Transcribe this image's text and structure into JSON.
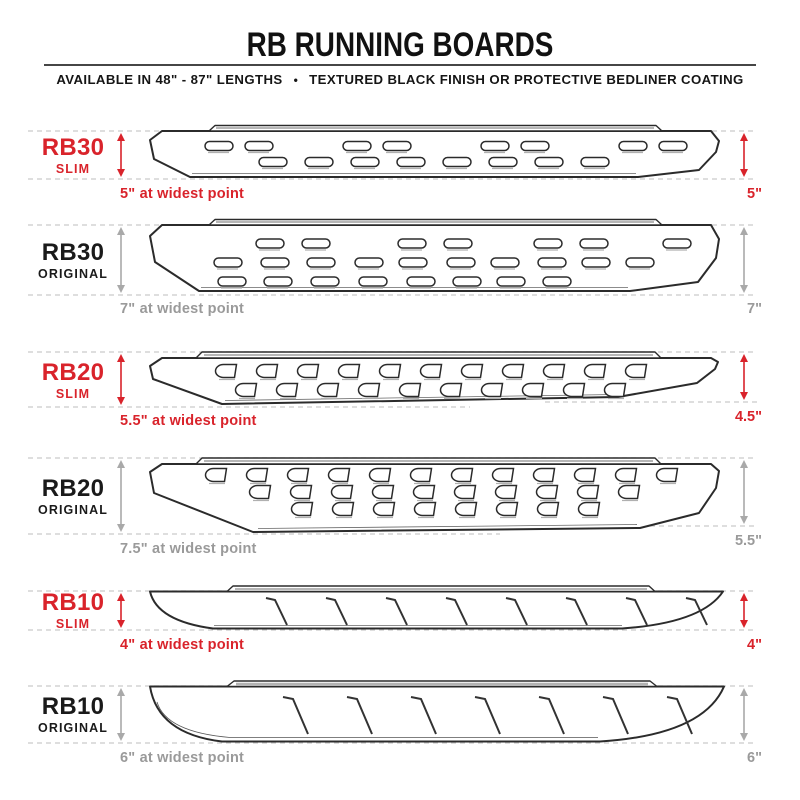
{
  "header": {
    "title": "RB RUNNING BOARDS",
    "availability": "AVAILABLE IN 48\" - 87\" LENGTHS",
    "separator": "•",
    "finish": "TEXTURED BLACK FINISH OR PROTECTIVE BEDLINER COATING"
  },
  "colors": {
    "accent_red": "#d9232b",
    "muted_gray_text": "#9a9a9a",
    "arrow_gray": "#a9a9a9",
    "outline_dark": "#2b2b2b",
    "dashed_guide": "#c9c9c9"
  },
  "sections": [
    {
      "model": "RB30",
      "variant": "SLIM",
      "accent": "red",
      "width_note": "5\" at widest point",
      "side_height": "5\""
    },
    {
      "model": "RB30",
      "variant": "ORIGINAL",
      "accent": "gray",
      "width_note": "7\" at widest point",
      "side_height": "7\""
    },
    {
      "model": "RB20",
      "variant": "SLIM",
      "accent": "red",
      "width_note": "5.5\" at widest point",
      "side_height": "4.5\""
    },
    {
      "model": "RB20",
      "variant": "ORIGINAL",
      "accent": "gray",
      "width_note": "7.5\" at widest point",
      "side_height": "5.5\""
    },
    {
      "model": "RB10",
      "variant": "SLIM",
      "accent": "red",
      "width_note": "4\" at widest point",
      "side_height": "4\""
    },
    {
      "model": "RB10",
      "variant": "ORIGINAL",
      "accent": "gray",
      "width_note": "6\" at widest point",
      "side_height": "6\""
    }
  ]
}
